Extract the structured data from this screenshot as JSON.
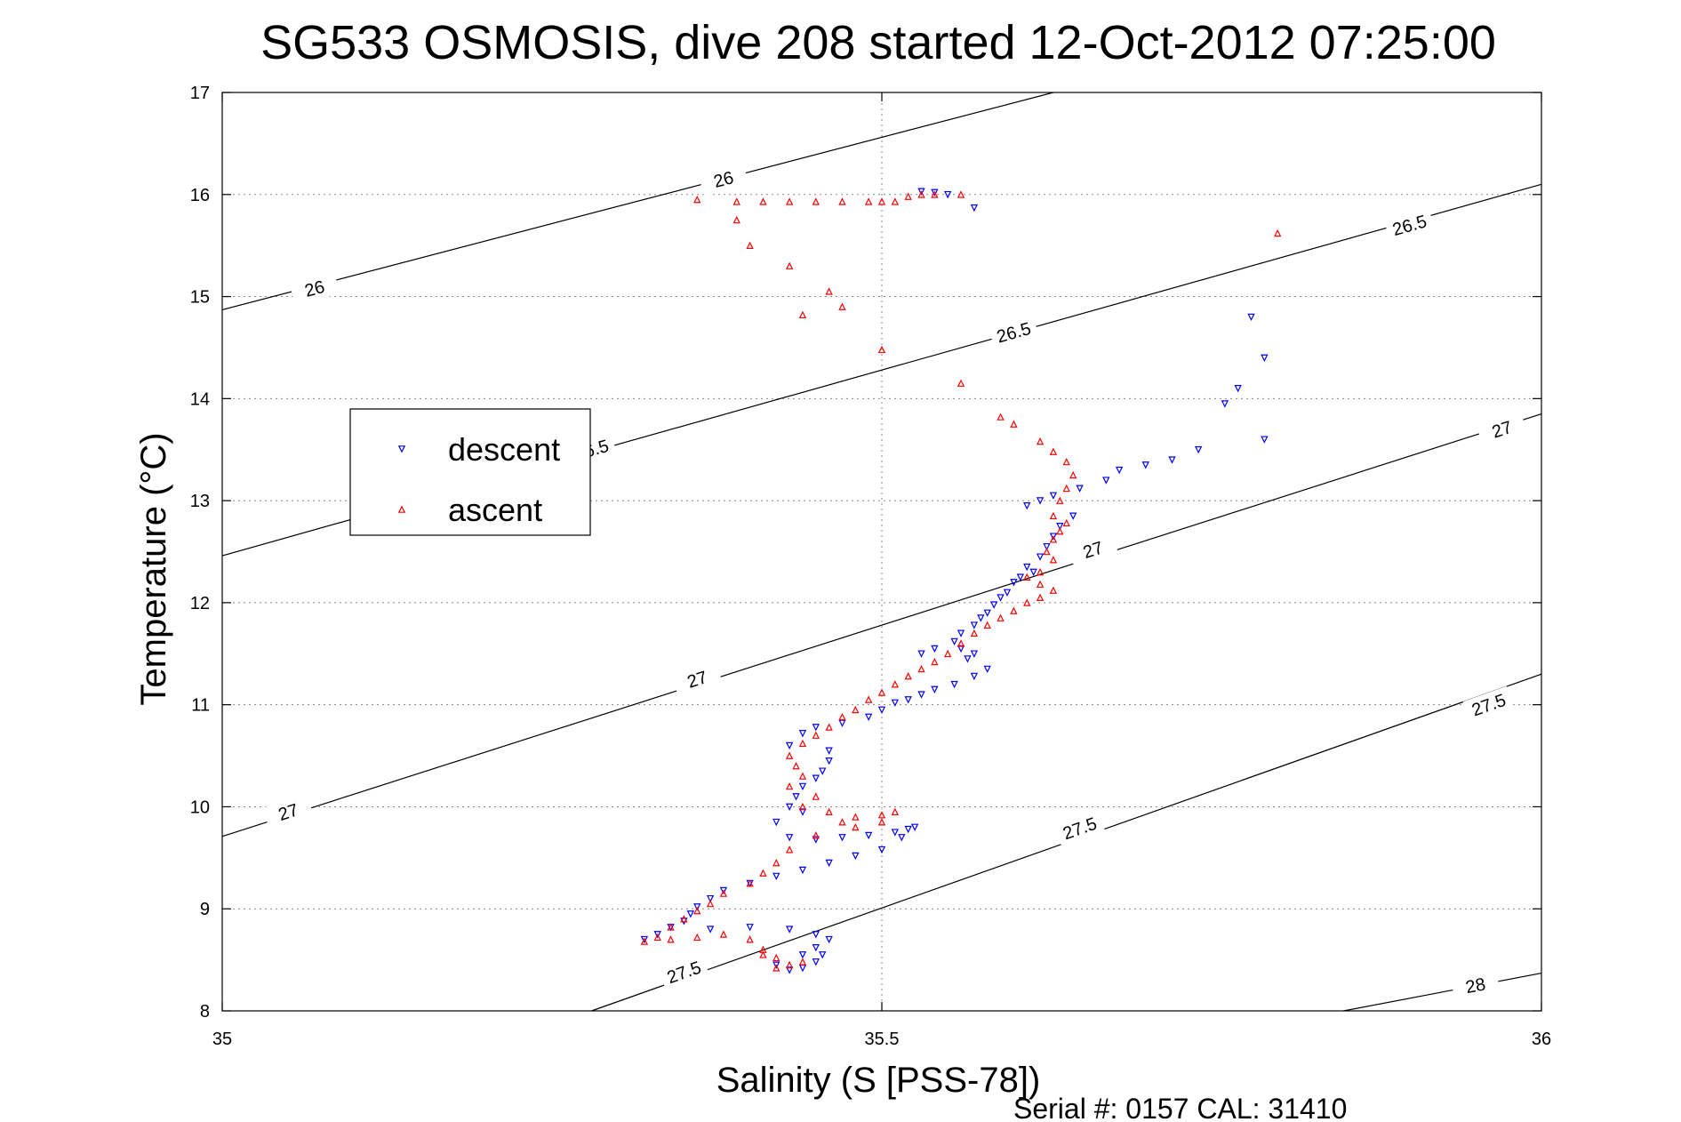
{
  "chart_data": {
    "type": "scatter",
    "title": "SG533 OSMOSIS, dive 208 started 12-Oct-2012 07:25:00",
    "xlabel": "Salinity (S [PSS-78])",
    "ylabel": "Temperature (°C)",
    "footer": "Serial #: 0157  CAL: 31410",
    "xlim": [
      35,
      36
    ],
    "ylim": [
      8,
      17
    ],
    "xticks": [
      35,
      35.5,
      36
    ],
    "xtick_labels": [
      "35",
      "35.5",
      "36"
    ],
    "yticks": [
      8,
      9,
      10,
      11,
      12,
      13,
      14,
      15,
      16,
      17
    ],
    "ytick_labels": [
      "8",
      "9",
      "10",
      "11",
      "12",
      "13",
      "14",
      "15",
      "16",
      "17"
    ],
    "grid": true,
    "legend_position": "upper-left",
    "density_contours": [
      {
        "label": "26",
        "from": [
          35.0,
          14.87
        ],
        "to": [
          35.63,
          17.0
        ],
        "labels_at": [
          [
            35.07,
            15.08
          ],
          [
            35.38,
            16.15
          ]
        ]
      },
      {
        "label": "26.5",
        "from": [
          35.0,
          12.46
        ],
        "to": [
          36.0,
          16.1
        ],
        "labels_at": [
          [
            35.28,
            13.5
          ],
          [
            35.6,
            14.65
          ],
          [
            35.9,
            15.7
          ]
        ]
      },
      {
        "label": "27",
        "from": [
          35.0,
          9.71
        ],
        "to": [
          36.0,
          13.85
        ],
        "labels_at": [
          [
            35.05,
            9.95
          ],
          [
            35.36,
            11.25
          ],
          [
            35.66,
            12.52
          ],
          [
            35.97,
            13.7
          ]
        ]
      },
      {
        "label": "27.5",
        "from": [
          35.28,
          8.0
        ],
        "to": [
          36.0,
          11.3
        ],
        "labels_at": [
          [
            35.35,
            8.38
          ],
          [
            35.65,
            9.79
          ],
          [
            35.96,
            11.0
          ]
        ]
      },
      {
        "label": "28",
        "from": [
          35.85,
          8.0
        ],
        "to": [
          36.0,
          8.37
        ],
        "labels_at": [
          [
            35.95,
            8.25
          ]
        ]
      }
    ],
    "series": [
      {
        "name": "descent",
        "color": "#0000ff",
        "marker": "triangle-down",
        "points": [
          [
            35.53,
            16.03
          ],
          [
            35.54,
            16.02
          ],
          [
            35.55,
            16.0
          ],
          [
            35.57,
            15.87
          ],
          [
            35.78,
            14.8
          ],
          [
            35.79,
            14.4
          ],
          [
            35.77,
            14.1
          ],
          [
            35.76,
            13.95
          ],
          [
            35.79,
            13.6
          ],
          [
            35.74,
            13.5
          ],
          [
            35.72,
            13.4
          ],
          [
            35.7,
            13.35
          ],
          [
            35.68,
            13.3
          ],
          [
            35.67,
            13.2
          ],
          [
            35.65,
            13.12
          ],
          [
            35.63,
            13.05
          ],
          [
            35.62,
            13.0
          ],
          [
            35.61,
            12.95
          ],
          [
            35.645,
            12.85
          ],
          [
            35.635,
            12.75
          ],
          [
            35.63,
            12.65
          ],
          [
            35.625,
            12.55
          ],
          [
            35.62,
            12.45
          ],
          [
            35.61,
            12.35
          ],
          [
            35.615,
            12.3
          ],
          [
            35.605,
            12.25
          ],
          [
            35.6,
            12.2
          ],
          [
            35.595,
            12.1
          ],
          [
            35.59,
            12.05
          ],
          [
            35.585,
            11.98
          ],
          [
            35.58,
            11.9
          ],
          [
            35.575,
            11.85
          ],
          [
            35.57,
            11.78
          ],
          [
            35.56,
            11.7
          ],
          [
            35.555,
            11.62
          ],
          [
            35.54,
            11.55
          ],
          [
            35.53,
            11.5
          ],
          [
            35.56,
            11.55
          ],
          [
            35.57,
            11.5
          ],
          [
            35.565,
            11.45
          ],
          [
            35.58,
            11.35
          ],
          [
            35.57,
            11.28
          ],
          [
            35.555,
            11.2
          ],
          [
            35.54,
            11.15
          ],
          [
            35.53,
            11.1
          ],
          [
            35.52,
            11.05
          ],
          [
            35.51,
            11.02
          ],
          [
            35.5,
            10.95
          ],
          [
            35.49,
            10.88
          ],
          [
            35.47,
            10.82
          ],
          [
            35.45,
            10.78
          ],
          [
            35.44,
            10.72
          ],
          [
            35.43,
            10.6
          ],
          [
            35.46,
            10.55
          ],
          [
            35.46,
            10.45
          ],
          [
            35.455,
            10.35
          ],
          [
            35.45,
            10.28
          ],
          [
            35.44,
            10.2
          ],
          [
            35.435,
            10.1
          ],
          [
            35.43,
            10.0
          ],
          [
            35.44,
            9.95
          ],
          [
            35.42,
            9.85
          ],
          [
            35.43,
            9.7
          ],
          [
            35.45,
            9.68
          ],
          [
            35.47,
            9.7
          ],
          [
            35.49,
            9.72
          ],
          [
            35.51,
            9.75
          ],
          [
            35.52,
            9.78
          ],
          [
            35.525,
            9.8
          ],
          [
            35.515,
            9.7
          ],
          [
            35.5,
            9.58
          ],
          [
            35.48,
            9.52
          ],
          [
            35.46,
            9.45
          ],
          [
            35.44,
            9.38
          ],
          [
            35.42,
            9.32
          ],
          [
            35.4,
            9.25
          ],
          [
            35.38,
            9.18
          ],
          [
            35.37,
            9.1
          ],
          [
            35.36,
            9.02
          ],
          [
            35.355,
            8.95
          ],
          [
            35.35,
            8.88
          ],
          [
            35.34,
            8.82
          ],
          [
            35.33,
            8.75
          ],
          [
            35.32,
            8.7
          ],
          [
            35.37,
            8.8
          ],
          [
            35.4,
            8.82
          ],
          [
            35.43,
            8.8
          ],
          [
            35.45,
            8.75
          ],
          [
            35.46,
            8.7
          ],
          [
            35.45,
            8.62
          ],
          [
            35.44,
            8.55
          ],
          [
            35.45,
            8.48
          ],
          [
            35.44,
            8.42
          ],
          [
            35.43,
            8.4
          ],
          [
            35.42,
            8.45
          ],
          [
            35.455,
            8.55
          ]
        ]
      },
      {
        "name": "ascent",
        "color": "#ff0000",
        "marker": "triangle-up",
        "points": [
          [
            35.36,
            15.95
          ],
          [
            35.39,
            15.93
          ],
          [
            35.41,
            15.93
          ],
          [
            35.43,
            15.93
          ],
          [
            35.45,
            15.93
          ],
          [
            35.47,
            15.93
          ],
          [
            35.49,
            15.93
          ],
          [
            35.5,
            15.93
          ],
          [
            35.51,
            15.93
          ],
          [
            35.52,
            15.98
          ],
          [
            35.53,
            16.0
          ],
          [
            35.54,
            16.0
          ],
          [
            35.56,
            16.0
          ],
          [
            35.39,
            15.75
          ],
          [
            35.4,
            15.5
          ],
          [
            35.43,
            15.3
          ],
          [
            35.46,
            15.05
          ],
          [
            35.47,
            14.9
          ],
          [
            35.44,
            14.82
          ],
          [
            35.5,
            14.48
          ],
          [
            35.56,
            14.15
          ],
          [
            35.8,
            15.62
          ],
          [
            35.59,
            13.82
          ],
          [
            35.6,
            13.75
          ],
          [
            35.62,
            13.58
          ],
          [
            35.63,
            13.48
          ],
          [
            35.64,
            13.38
          ],
          [
            35.645,
            13.25
          ],
          [
            35.64,
            13.12
          ],
          [
            35.635,
            13.0
          ],
          [
            35.63,
            12.85
          ],
          [
            35.64,
            12.78
          ],
          [
            35.635,
            12.7
          ],
          [
            35.63,
            12.62
          ],
          [
            35.625,
            12.5
          ],
          [
            35.63,
            12.42
          ],
          [
            35.62,
            12.3
          ],
          [
            35.61,
            12.25
          ],
          [
            35.62,
            12.18
          ],
          [
            35.63,
            12.12
          ],
          [
            35.62,
            12.05
          ],
          [
            35.61,
            12.0
          ],
          [
            35.6,
            11.92
          ],
          [
            35.59,
            11.85
          ],
          [
            35.58,
            11.78
          ],
          [
            35.57,
            11.7
          ],
          [
            35.56,
            11.6
          ],
          [
            35.55,
            11.5
          ],
          [
            35.54,
            11.42
          ],
          [
            35.53,
            11.35
          ],
          [
            35.52,
            11.28
          ],
          [
            35.51,
            11.2
          ],
          [
            35.5,
            11.12
          ],
          [
            35.49,
            11.05
          ],
          [
            35.48,
            10.95
          ],
          [
            35.47,
            10.88
          ],
          [
            35.46,
            10.78
          ],
          [
            35.45,
            10.7
          ],
          [
            35.44,
            10.62
          ],
          [
            35.43,
            10.5
          ],
          [
            35.435,
            10.4
          ],
          [
            35.44,
            10.3
          ],
          [
            35.43,
            10.2
          ],
          [
            35.45,
            10.1
          ],
          [
            35.44,
            10.0
          ],
          [
            35.46,
            9.95
          ],
          [
            35.48,
            9.9
          ],
          [
            35.5,
            9.92
          ],
          [
            35.51,
            9.95
          ],
          [
            35.5,
            9.85
          ],
          [
            35.48,
            9.8
          ],
          [
            35.47,
            9.85
          ],
          [
            35.45,
            9.72
          ],
          [
            35.43,
            9.58
          ],
          [
            35.42,
            9.45
          ],
          [
            35.41,
            9.35
          ],
          [
            35.4,
            9.25
          ],
          [
            35.38,
            9.15
          ],
          [
            35.37,
            9.05
          ],
          [
            35.36,
            8.98
          ],
          [
            35.35,
            8.9
          ],
          [
            35.34,
            8.82
          ],
          [
            35.33,
            8.72
          ],
          [
            35.32,
            8.68
          ],
          [
            35.34,
            8.7
          ],
          [
            35.36,
            8.72
          ],
          [
            35.38,
            8.75
          ],
          [
            35.4,
            8.7
          ],
          [
            35.41,
            8.6
          ],
          [
            35.42,
            8.52
          ],
          [
            35.43,
            8.45
          ],
          [
            35.42,
            8.42
          ],
          [
            35.44,
            8.48
          ],
          [
            35.41,
            8.55
          ]
        ]
      }
    ]
  }
}
